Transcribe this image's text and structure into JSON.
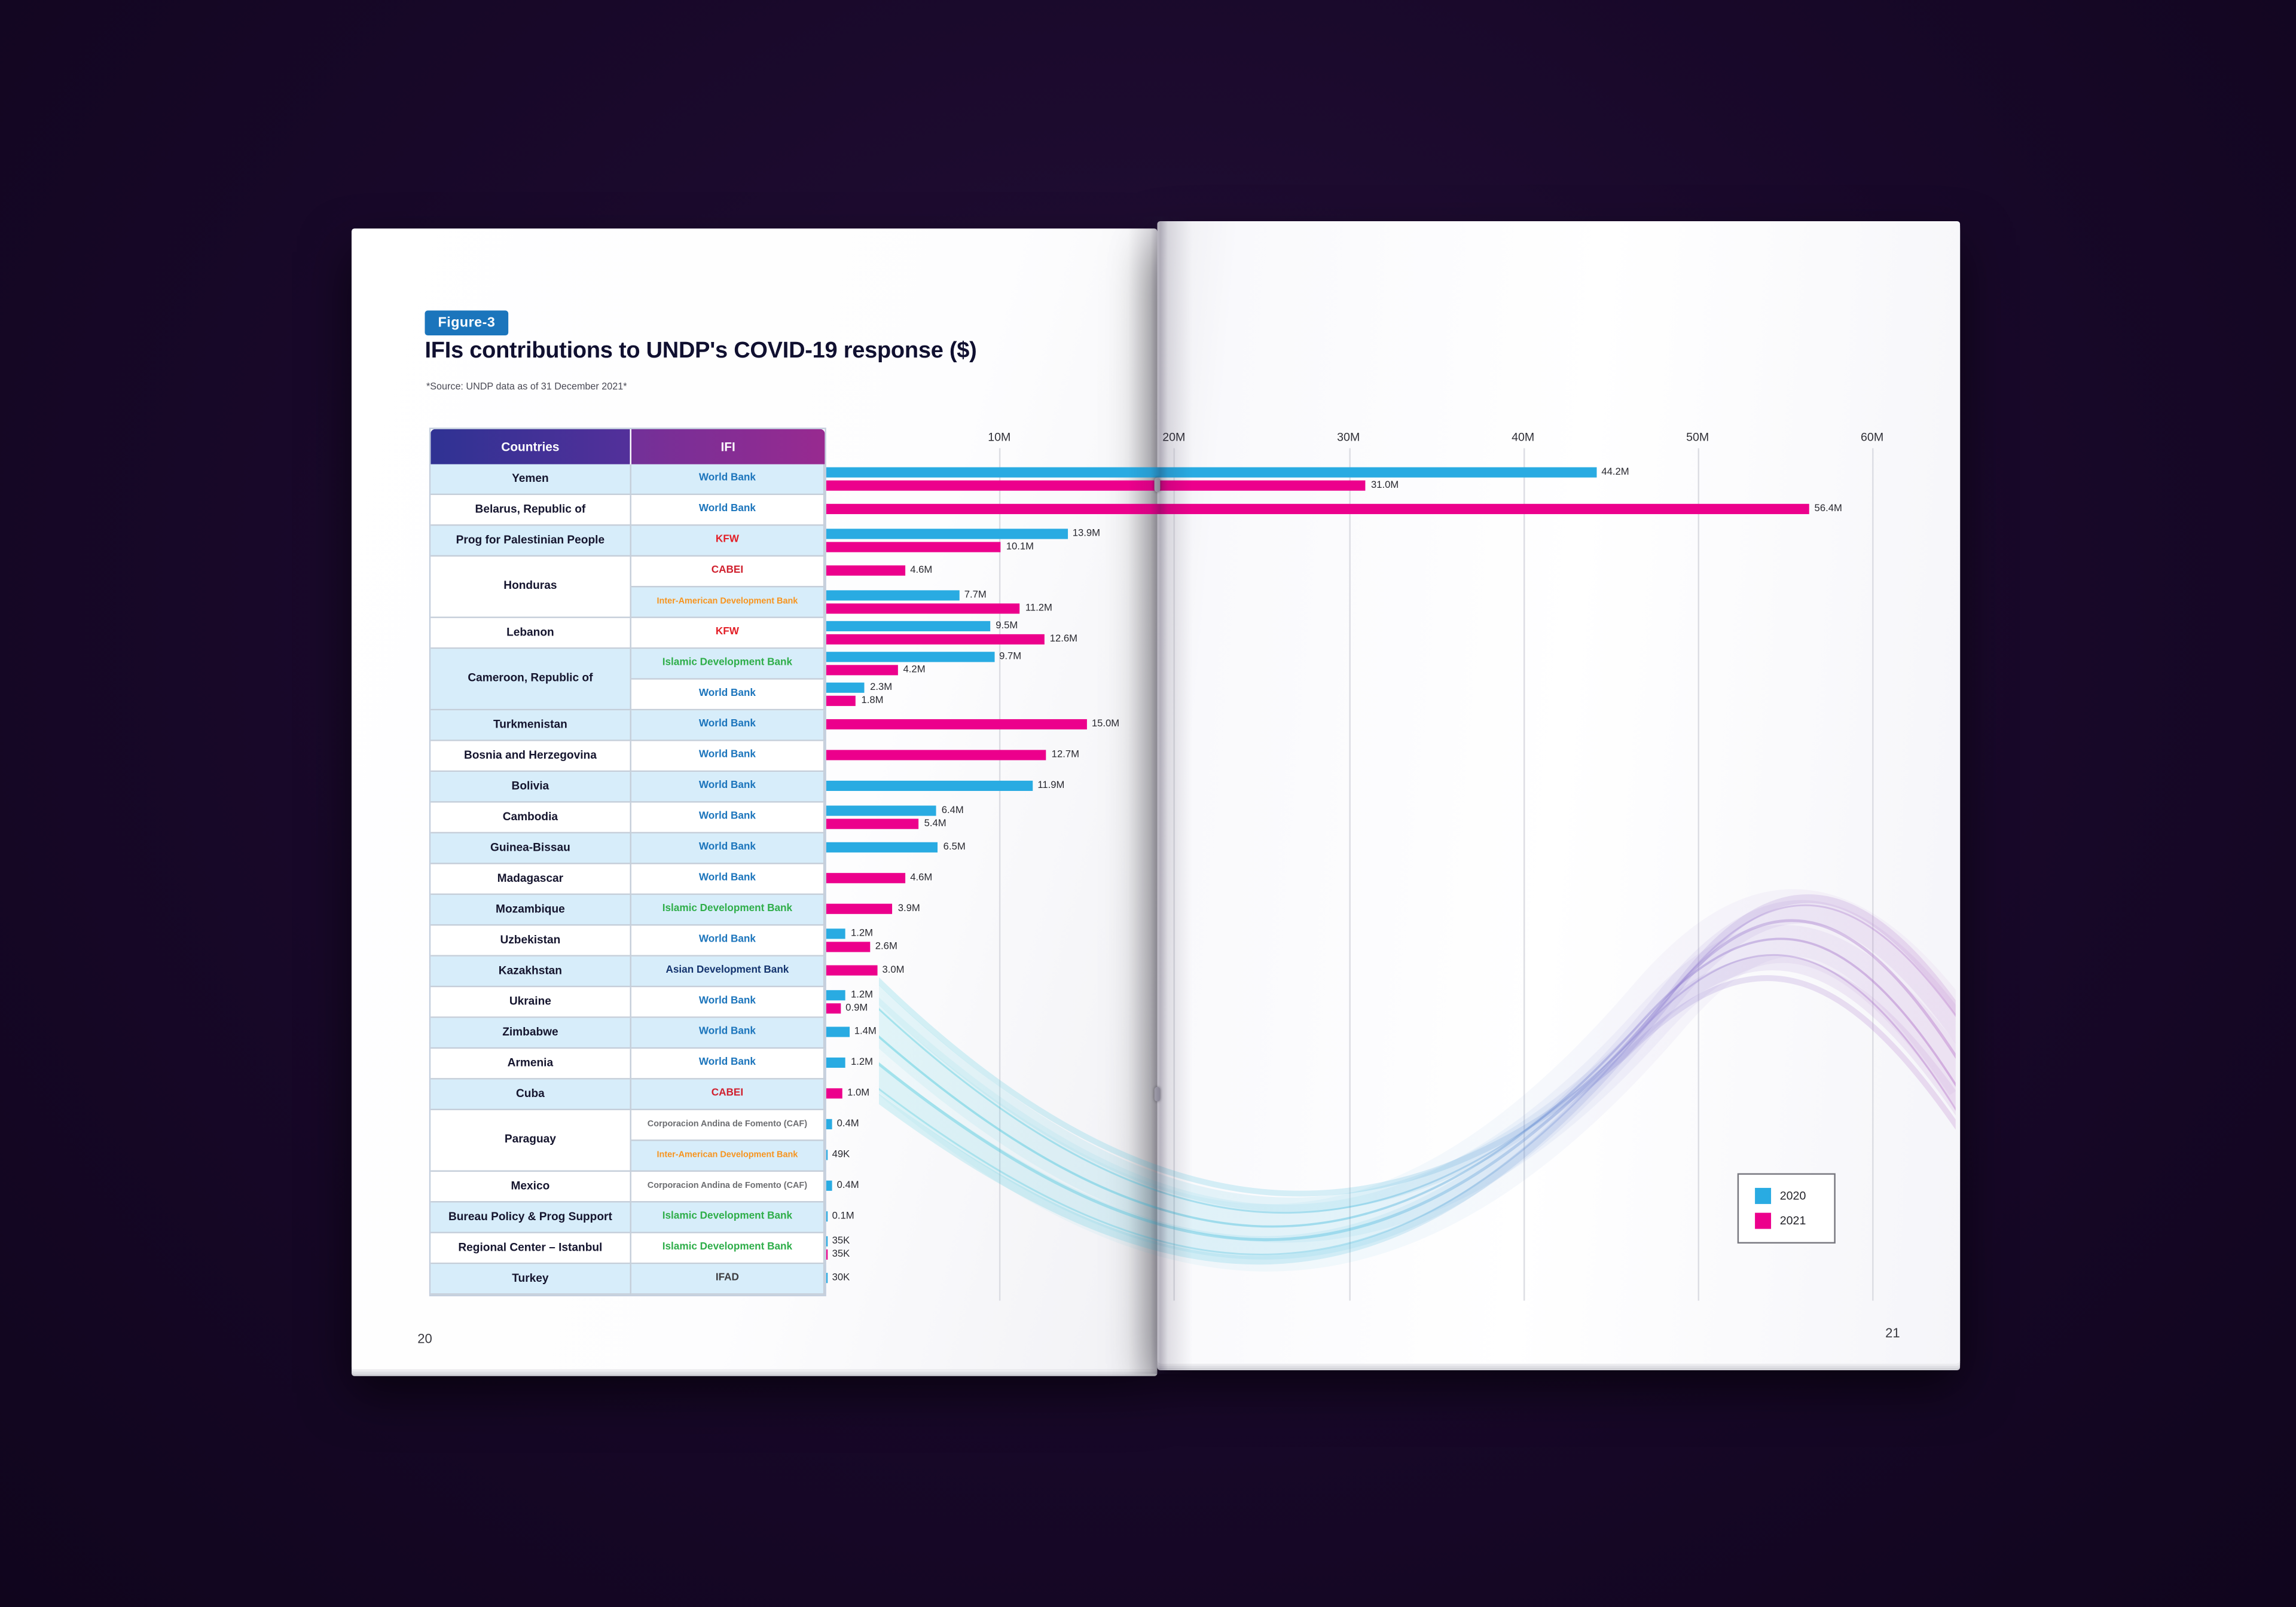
{
  "document": {
    "figure_label": "Figure-3",
    "title": "IFIs contributions to UNDP's COVID-19 response ($)",
    "source_note": "*Source: UNDP data as of 31 December 2021*",
    "left_page_number": "20",
    "right_page_number": "21"
  },
  "table": {
    "country_header": "Countries",
    "ifi_header": "IFI"
  },
  "ifi_colors": {
    "World Bank": "#1c75bc",
    "KFW": "#e31e26",
    "CABEI": "#d0202e",
    "Inter-American Development Bank": "#f7941e",
    "Islamic Development Bank": "#2fae4a",
    "Asian Development Bank": "#15356f",
    "Corporacion Andina de Fomento (CAF)": "#6d6e71",
    "IFAD": "#3d3d40"
  },
  "chart_data": {
    "type": "bar",
    "orientation": "horizontal",
    "title": "IFIs contributions to UNDP's COVID-19 response ($)",
    "unit": "USD",
    "x_ticks": [
      "10M",
      "20M",
      "30M",
      "40M",
      "50M",
      "60M"
    ],
    "x_axis_max_millions": 60,
    "grid": true,
    "legend_position": "bottom-right",
    "legend": [
      {
        "name": "2020",
        "color": "#29abe2"
      },
      {
        "name": "2021",
        "color": "#ec008c"
      }
    ],
    "rows": [
      {
        "country": "Yemen",
        "span": 1,
        "ifi": "World Bank",
        "bars": [
          {
            "series": "2020",
            "m": 44.2,
            "label": "44.2M"
          },
          {
            "series": "2021",
            "m": 31.0,
            "label": "31.0M"
          }
        ]
      },
      {
        "country": "Belarus, Republic of",
        "span": 1,
        "ifi": "World Bank",
        "bars": [
          {
            "series": "2021",
            "m": 56.4,
            "label": "56.4M"
          }
        ]
      },
      {
        "country": "Prog for Palestinian People",
        "span": 1,
        "ifi": "KFW",
        "bars": [
          {
            "series": "2020",
            "m": 13.9,
            "label": "13.9M"
          },
          {
            "series": "2021",
            "m": 10.1,
            "label": "10.1M"
          }
        ]
      },
      {
        "country": "Honduras",
        "span": 2,
        "ifi": "CABEI",
        "bars": [
          {
            "series": "2021",
            "m": 4.6,
            "label": "4.6M"
          }
        ]
      },
      {
        "country": null,
        "ifi": "Inter-American Development Bank",
        "bars": [
          {
            "series": "2020",
            "m": 7.7,
            "label": "7.7M"
          },
          {
            "series": "2021",
            "m": 11.2,
            "label": "11.2M"
          }
        ]
      },
      {
        "country": "Lebanon",
        "span": 1,
        "ifi": "KFW",
        "bars": [
          {
            "series": "2020",
            "m": 9.5,
            "label": "9.5M"
          },
          {
            "series": "2021",
            "m": 12.6,
            "label": "12.6M"
          }
        ]
      },
      {
        "country": "Cameroon, Republic of",
        "span": 2,
        "ifi": "Islamic Development Bank",
        "bars": [
          {
            "series": "2020",
            "m": 9.7,
            "label": "9.7M"
          },
          {
            "series": "2021",
            "m": 4.2,
            "label": "4.2M"
          }
        ]
      },
      {
        "country": null,
        "ifi": "World Bank",
        "bars": [
          {
            "series": "2020",
            "m": 2.3,
            "label": "2.3M"
          },
          {
            "series": "2021",
            "m": 1.8,
            "label": "1.8M"
          }
        ]
      },
      {
        "country": "Turkmenistan",
        "span": 1,
        "ifi": "World Bank",
        "bars": [
          {
            "series": "2021",
            "m": 15.0,
            "label": "15.0M"
          }
        ]
      },
      {
        "country": "Bosnia and Herzegovina",
        "span": 1,
        "ifi": "World Bank",
        "bars": [
          {
            "series": "2021",
            "m": 12.7,
            "label": "12.7M"
          }
        ]
      },
      {
        "country": "Bolivia",
        "span": 1,
        "ifi": "World Bank",
        "bars": [
          {
            "series": "2020",
            "m": 11.9,
            "label": "11.9M"
          }
        ]
      },
      {
        "country": "Cambodia",
        "span": 1,
        "ifi": "World Bank",
        "bars": [
          {
            "series": "2020",
            "m": 6.4,
            "label": "6.4M"
          },
          {
            "series": "2021",
            "m": 5.4,
            "label": "5.4M"
          }
        ]
      },
      {
        "country": "Guinea-Bissau",
        "span": 1,
        "ifi": "World Bank",
        "bars": [
          {
            "series": "2020",
            "m": 6.5,
            "label": "6.5M"
          }
        ]
      },
      {
        "country": "Madagascar",
        "span": 1,
        "ifi": "World Bank",
        "bars": [
          {
            "series": "2021",
            "m": 4.6,
            "label": "4.6M"
          }
        ]
      },
      {
        "country": "Mozambique",
        "span": 1,
        "ifi": "Islamic Development Bank",
        "bars": [
          {
            "series": "2021",
            "m": 3.9,
            "label": "3.9M"
          }
        ]
      },
      {
        "country": "Uzbekistan",
        "span": 1,
        "ifi": "World Bank",
        "bars": [
          {
            "series": "2020",
            "m": 1.2,
            "label": "1.2M"
          },
          {
            "series": "2021",
            "m": 2.6,
            "label": "2.6M"
          }
        ]
      },
      {
        "country": "Kazakhstan",
        "span": 1,
        "ifi": "Asian Development Bank",
        "bars": [
          {
            "series": "2021",
            "m": 3.0,
            "label": "3.0M"
          }
        ]
      },
      {
        "country": "Ukraine",
        "span": 1,
        "ifi": "World Bank",
        "bars": [
          {
            "series": "2020",
            "m": 1.2,
            "label": "1.2M"
          },
          {
            "series": "2021",
            "m": 0.9,
            "label": "0.9M"
          }
        ]
      },
      {
        "country": "Zimbabwe",
        "span": 1,
        "ifi": "World Bank",
        "bars": [
          {
            "series": "2020",
            "m": 1.4,
            "label": "1.4M"
          }
        ]
      },
      {
        "country": "Armenia",
        "span": 1,
        "ifi": "World Bank",
        "bars": [
          {
            "series": "2020",
            "m": 1.2,
            "label": "1.2M"
          }
        ]
      },
      {
        "country": "Cuba",
        "span": 1,
        "ifi": "CABEI",
        "bars": [
          {
            "series": "2021",
            "m": 1.0,
            "label": "1.0M"
          }
        ]
      },
      {
        "country": "Paraguay",
        "span": 2,
        "ifi": "Corporacion Andina de Fomento (CAF)",
        "bars": [
          {
            "series": "2020",
            "m": 0.4,
            "label": "0.4M"
          }
        ]
      },
      {
        "country": null,
        "ifi": "Inter-American Development Bank",
        "bars": [
          {
            "series": "2020",
            "m": 0.049,
            "label": "49K"
          }
        ]
      },
      {
        "country": "Mexico",
        "span": 1,
        "ifi": "Corporacion Andina de Fomento (CAF)",
        "bars": [
          {
            "series": "2020",
            "m": 0.4,
            "label": "0.4M"
          }
        ]
      },
      {
        "country": "Bureau Policy & Prog Support",
        "span": 1,
        "ifi": "Islamic Development Bank",
        "bars": [
          {
            "series": "2020",
            "m": 0.1,
            "label": "0.1M"
          }
        ]
      },
      {
        "country": "Regional Center – Istanbul",
        "span": 1,
        "ifi": "Islamic Development Bank",
        "bars": [
          {
            "series": "2020",
            "m": 0.035,
            "label": "35K"
          },
          {
            "series": "2021",
            "m": 0.035,
            "label": "35K"
          }
        ]
      },
      {
        "country": "Turkey",
        "span": 1,
        "ifi": "IFAD",
        "bars": [
          {
            "series": "2020",
            "m": 0.03,
            "label": "30K"
          }
        ]
      }
    ]
  }
}
